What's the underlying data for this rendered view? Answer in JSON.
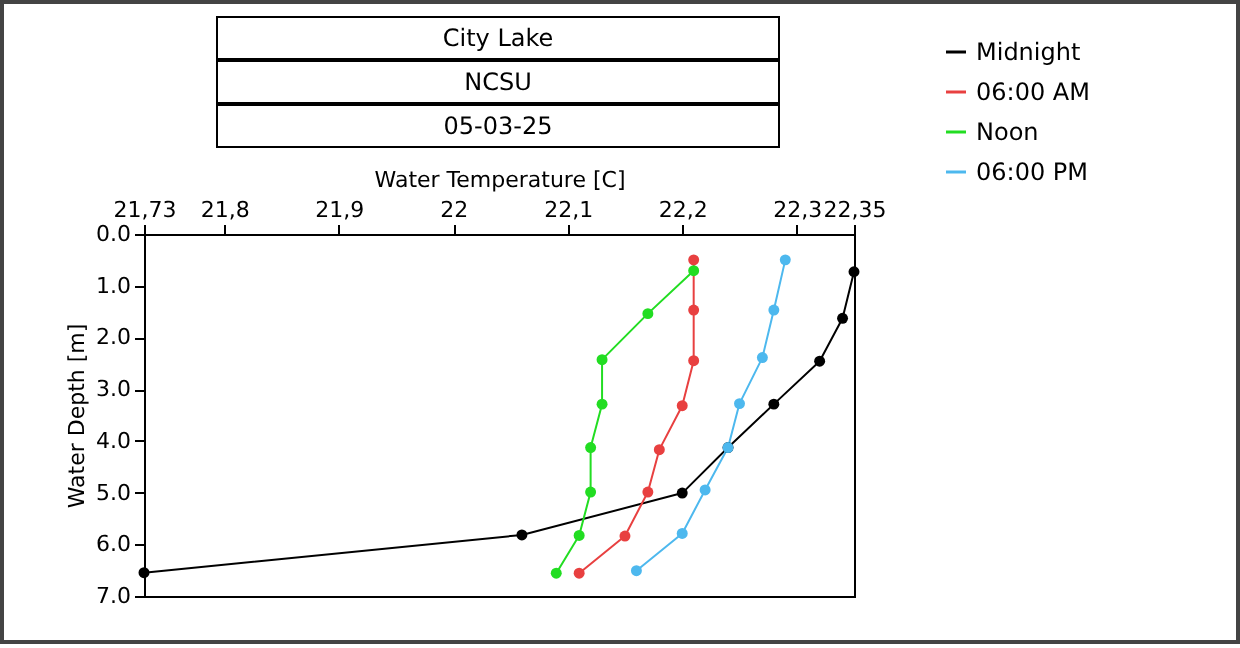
{
  "chart_data": {
    "type": "line",
    "title": "City Lake",
    "subtitle": "NCSU",
    "annotations": [
      "05-03-25"
    ],
    "xlabel": "Water Temperature [C]",
    "ylabel": "Water Depth [m]",
    "xlim": [
      21.73,
      22.35
    ],
    "xticks": [
      {
        "value": 21.73,
        "label": "21,73"
      },
      {
        "value": 21.8,
        "label": "21,8"
      },
      {
        "value": 21.9,
        "label": "21,9"
      },
      22,
      {
        "value": 22.1,
        "label": "22,1"
      },
      {
        "value": 22.2,
        "label": "22,2"
      },
      {
        "value": 22.3,
        "label": "22,3"
      },
      {
        "value": 22.35,
        "label": "22,35"
      }
    ],
    "ylim": [
      7,
      0
    ],
    "yticks": [
      {
        "value": 0,
        "label": "0.0"
      },
      {
        "value": 1,
        "label": "1.0"
      },
      {
        "value": 2,
        "label": "2.0"
      },
      {
        "value": 3,
        "label": "3.0"
      },
      {
        "value": 4,
        "label": "4.0"
      },
      {
        "value": 5,
        "label": "5.0"
      },
      {
        "value": 6,
        "label": "6.0"
      },
      {
        "value": 7,
        "label": "7.0"
      }
    ],
    "grid": false,
    "legend": "top right",
    "marker": "circle",
    "line_style": "solid",
    "series": [
      {
        "name": "Midnight",
        "color": "#000000",
        "x": [
          22.35,
          22.34,
          22.32,
          22.28,
          22.24,
          22.2,
          22.06,
          21.73
        ],
        "values": [
          0.73,
          1.63,
          2.46,
          3.29,
          4.13,
          5.01,
          5.82,
          6.55
        ]
      },
      {
        "name": "06:00 AM",
        "color": "#e84040",
        "x": [
          22.21,
          22.21,
          22.21,
          22.2,
          22.18,
          22.17,
          22.15,
          22.11
        ],
        "values": [
          0.5,
          1.47,
          2.45,
          3.32,
          4.17,
          4.99,
          5.84,
          6.56
        ]
      },
      {
        "name": "Noon",
        "color": "#22dd22",
        "x": [
          22.21,
          22.17,
          22.13,
          22.13,
          22.12,
          22.12,
          22.11,
          22.09
        ],
        "values": [
          0.71,
          1.54,
          2.43,
          3.29,
          4.13,
          4.99,
          5.83,
          6.56
        ]
      },
      {
        "name": "06:00 PM",
        "color": "#4db8ee",
        "x": [
          22.29,
          22.28,
          22.27,
          22.25,
          22.24,
          22.22,
          22.2,
          22.16
        ],
        "values": [
          0.5,
          1.47,
          2.39,
          3.28,
          4.13,
          4.95,
          5.79,
          6.51
        ]
      }
    ]
  }
}
